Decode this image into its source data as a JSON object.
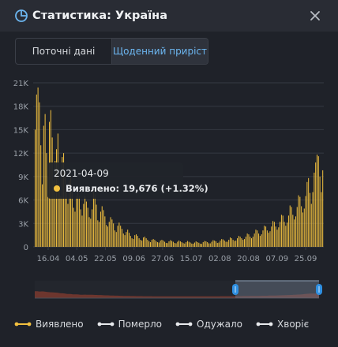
{
  "header": {
    "title": "Статистика: Україна",
    "title_icon": "pie-chart-icon",
    "close_icon": "close-icon"
  },
  "tabs": [
    {
      "label": "Поточні дані",
      "active": false
    },
    {
      "label": "Щоденний приріст",
      "active": true
    }
  ],
  "tooltip": {
    "date": "2021-04-09",
    "series_label": "Виявлено:",
    "value": "19,676",
    "change": "(+1.32%)",
    "marker_color": "#f3c13f"
  },
  "legend": [
    {
      "label": "Виявлено",
      "color": "#f3c13f"
    },
    {
      "label": "Померло",
      "color": "#e8eaed"
    },
    {
      "label": "Одужало",
      "color": "#e8eaed"
    },
    {
      "label": "Хворіє",
      "color": "#e8eaed"
    }
  ],
  "colors": {
    "background": "#1f2229",
    "bar": "#f3c13f",
    "grid": "#353942",
    "axis_text": "#9aa0a8",
    "navigator_fill": "#7a3a2f",
    "navigator_handle": "#2f8fe0"
  },
  "chart_data": {
    "type": "bar",
    "title": "",
    "xlabel": "",
    "ylabel": "",
    "ylim": [
      0,
      21000
    ],
    "y_ticks": [
      "0",
      "3K",
      "6K",
      "9K",
      "12K",
      "15K",
      "18K",
      "21K"
    ],
    "x_ticks": [
      "16.04",
      "04.05",
      "22.05",
      "09.06",
      "27.06",
      "15.07",
      "02.08",
      "20.08",
      "07.09",
      "25.09"
    ],
    "grid": true,
    "series": [
      {
        "name": "Виявлено",
        "values": [
          15000,
          19500,
          20400,
          18500,
          13000,
          8000,
          15500,
          17000,
          12000,
          9000,
          16000,
          17500,
          14000,
          8500,
          11000,
          12500,
          14500,
          8000,
          6500,
          11500,
          12000,
          9500,
          7000,
          5500,
          8500,
          9000,
          7000,
          5000,
          4500,
          6500,
          7500,
          6500,
          4800,
          4000,
          5500,
          6500,
          5800,
          5000,
          3800,
          3600,
          4800,
          7100,
          6700,
          5400,
          3400,
          3200,
          4500,
          5200,
          4700,
          3900,
          2800,
          2600,
          3200,
          3800,
          3500,
          3000,
          2100,
          1900,
          2700,
          3100,
          2700,
          2300,
          1700,
          1500,
          1900,
          2200,
          1800,
          1400,
          1100,
          1000,
          1500,
          1600,
          1400,
          1100,
          900,
          800,
          1200,
          1300,
          1100,
          900,
          700,
          600,
          900,
          1000,
          900,
          700,
          600,
          550,
          800,
          900,
          800,
          650,
          500,
          480,
          700,
          850,
          750,
          650,
          500,
          450,
          650,
          800,
          700,
          600,
          480,
          420,
          600,
          750,
          650,
          550,
          420,
          400,
          550,
          700,
          600,
          520,
          400,
          380,
          600,
          750,
          700,
          600,
          450,
          450,
          650,
          850,
          800,
          700,
          500,
          550,
          800,
          1000,
          950,
          800,
          650,
          650,
          900,
          1200,
          1100,
          900,
          750,
          800,
          1100,
          1400,
          1300,
          1100,
          900,
          1000,
          1300,
          1700,
          1600,
          1300,
          1100,
          1300,
          1700,
          2200,
          2100,
          1700,
          1400,
          1600,
          2100,
          2700,
          2600,
          2100,
          1800,
          2000,
          2600,
          3300,
          3200,
          2600,
          2200,
          2500,
          3200,
          4100,
          4000,
          3200,
          2700,
          3100,
          4000,
          5300,
          5100,
          4100,
          3500,
          3900,
          5100,
          6600,
          6400,
          5200,
          4400,
          4900,
          6500,
          8300,
          8800,
          6900,
          5500,
          7000,
          9500,
          10800,
          11800,
          11600,
          9000,
          7000,
          9800
        ]
      }
    ],
    "tooltip_point": {
      "x": "2021-04-09",
      "y": 19676,
      "change_percent": 1.32
    }
  }
}
